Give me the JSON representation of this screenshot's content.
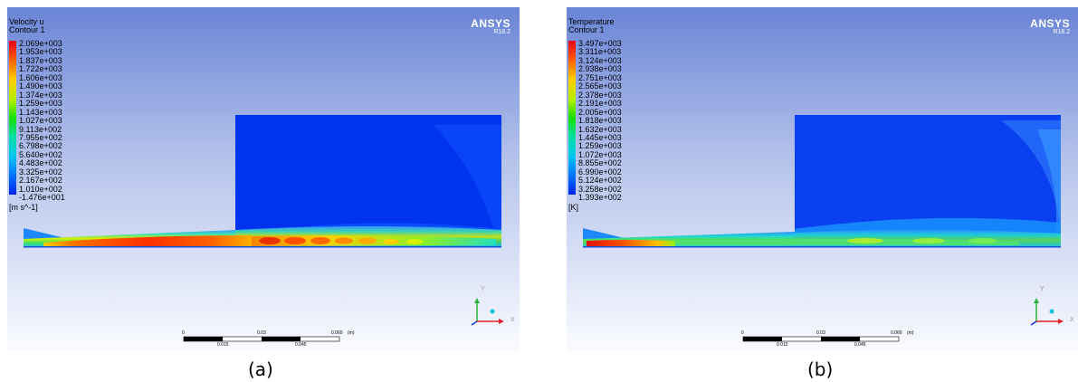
{
  "panels": [
    {
      "title": "Velocity u",
      "subtitle": "Contour 1",
      "unit": "[m s^-1]",
      "caption": "(a)",
      "colorbar_ticks": [
        "2.069e+003",
        "1.953e+003",
        "1.837e+003",
        "1.722e+003",
        "1.606e+003",
        "1.490e+003",
        "1.374e+003",
        "1.259e+003",
        "1.143e+003",
        "1.027e+003",
        "9.113e+002",
        "7.955e+002",
        "6.798e+002",
        "5.640e+002",
        "4.483e+002",
        "3.325e+002",
        "2.167e+002",
        "1.010e+002",
        "-1.476e+001"
      ]
    },
    {
      "title": "Temperature",
      "subtitle": "Contour 1",
      "unit": "[K]",
      "caption": "(b)",
      "colorbar_ticks": [
        "3.497e+003",
        "3.311e+003",
        "3.124e+003",
        "2.938e+003",
        "2.751e+003",
        "2.565e+003",
        "2.378e+003",
        "2.191e+003",
        "2.005e+003",
        "1.818e+003",
        "1.632e+003",
        "1.445e+003",
        "1.259e+003",
        "1.072e+003",
        "8.855e+002",
        "6.990e+002",
        "5.124e+002",
        "3.258e+002",
        "1.393e+002"
      ]
    }
  ],
  "logo": {
    "name": "ANSYS",
    "version": "R18.2"
  },
  "scale_bar": {
    "top_labels": [
      "0",
      "0.03",
      "0.060"
    ],
    "unit": "(m)",
    "bottom_labels": [
      "0.015",
      "0.045"
    ]
  },
  "axes": {
    "x": "X",
    "y": "Y"
  },
  "colors": {
    "background_top": "#6b86d6",
    "background_bottom": "#fafbfe",
    "domain_blue": "#0033ee"
  }
}
